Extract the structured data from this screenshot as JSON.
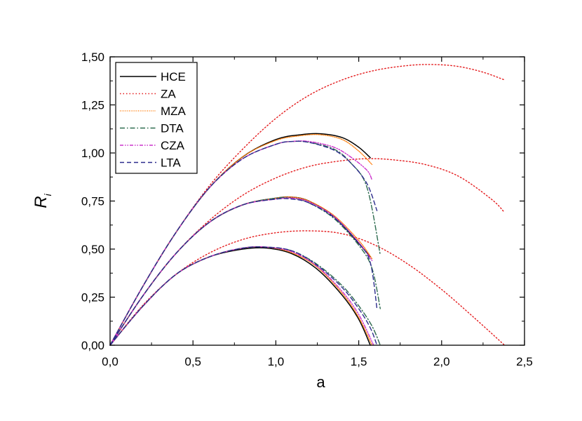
{
  "chart_data": {
    "type": "line",
    "xlabel": "a",
    "ylabel": "R",
    "ylabel_subscript": "i",
    "xlim": [
      0,
      2.5
    ],
    "ylim": [
      0,
      1.5
    ],
    "x_ticks": [
      "0,0",
      "0,5",
      "1,0",
      "1,5",
      "2,0",
      "2,5"
    ],
    "y_ticks": [
      "0,00",
      "0,25",
      "0,50",
      "0,75",
      "1,00",
      "1,25",
      "1,50"
    ],
    "grid": false,
    "legend_position": "top-left",
    "series": [
      {
        "name": "HCE",
        "color": "#000000",
        "dash": "solid",
        "curves": [
          [
            [
              0,
              0
            ],
            [
              0.2,
              0.205
            ],
            [
              0.4,
              0.37
            ],
            [
              0.6,
              0.46
            ],
            [
              0.8,
              0.5
            ],
            [
              0.95,
              0.505
            ],
            [
              1.1,
              0.475
            ],
            [
              1.25,
              0.395
            ],
            [
              1.4,
              0.26
            ],
            [
              1.5,
              0.135
            ],
            [
              1.57,
              0.0
            ]
          ],
          [
            [
              0,
              0
            ],
            [
              0.2,
              0.26
            ],
            [
              0.4,
              0.48
            ],
            [
              0.6,
              0.64
            ],
            [
              0.8,
              0.73
            ],
            [
              1.0,
              0.765
            ],
            [
              1.1,
              0.77
            ],
            [
              1.2,
              0.75
            ],
            [
              1.35,
              0.67
            ],
            [
              1.5,
              0.53
            ],
            [
              1.57,
              0.46
            ]
          ],
          [
            [
              0,
              0
            ],
            [
              0.2,
              0.31
            ],
            [
              0.4,
              0.59
            ],
            [
              0.6,
              0.82
            ],
            [
              0.8,
              0.98
            ],
            [
              1.0,
              1.07
            ],
            [
              1.15,
              1.095
            ],
            [
              1.27,
              1.1
            ],
            [
              1.4,
              1.08
            ],
            [
              1.5,
              1.03
            ],
            [
              1.57,
              0.975
            ]
          ]
        ]
      },
      {
        "name": "ZA",
        "color": "#e41a1c",
        "dash": "dotted",
        "curves": [
          [
            [
              0,
              0
            ],
            [
              0.2,
              0.21
            ],
            [
              0.4,
              0.37
            ],
            [
              0.6,
              0.48
            ],
            [
              0.8,
              0.55
            ],
            [
              1.0,
              0.585
            ],
            [
              1.2,
              0.595
            ],
            [
              1.4,
              0.58
            ],
            [
              1.6,
              0.52
            ],
            [
              1.8,
              0.42
            ],
            [
              2.0,
              0.29
            ],
            [
              2.2,
              0.14
            ],
            [
              2.38,
              0.0
            ]
          ],
          [
            [
              0,
              0
            ],
            [
              0.2,
              0.26
            ],
            [
              0.4,
              0.48
            ],
            [
              0.6,
              0.65
            ],
            [
              0.8,
              0.78
            ],
            [
              1.0,
              0.87
            ],
            [
              1.2,
              0.93
            ],
            [
              1.4,
              0.96
            ],
            [
              1.55,
              0.97
            ],
            [
              1.7,
              0.965
            ],
            [
              1.9,
              0.94
            ],
            [
              2.1,
              0.88
            ],
            [
              2.3,
              0.76
            ],
            [
              2.38,
              0.69
            ]
          ],
          [
            [
              0,
              0
            ],
            [
              0.2,
              0.31
            ],
            [
              0.4,
              0.59
            ],
            [
              0.6,
              0.83
            ],
            [
              0.8,
              1.02
            ],
            [
              1.0,
              1.18
            ],
            [
              1.2,
              1.3
            ],
            [
              1.4,
              1.38
            ],
            [
              1.6,
              1.43
            ],
            [
              1.8,
              1.455
            ],
            [
              1.95,
              1.46
            ],
            [
              2.1,
              1.45
            ],
            [
              2.25,
              1.42
            ],
            [
              2.38,
              1.38
            ]
          ]
        ]
      },
      {
        "name": "MZA",
        "color": "#ff7f0e",
        "dash": "fine-dot",
        "curves": [
          [
            [
              0,
              0
            ],
            [
              0.2,
              0.205
            ],
            [
              0.4,
              0.37
            ],
            [
              0.6,
              0.46
            ],
            [
              0.8,
              0.505
            ],
            [
              0.95,
              0.51
            ],
            [
              1.1,
              0.48
            ],
            [
              1.25,
              0.405
            ],
            [
              1.4,
              0.27
            ],
            [
              1.5,
              0.145
            ],
            [
              1.58,
              0.0
            ]
          ],
          [
            [
              0,
              0
            ],
            [
              0.2,
              0.26
            ],
            [
              0.4,
              0.48
            ],
            [
              0.6,
              0.64
            ],
            [
              0.8,
              0.73
            ],
            [
              1.0,
              0.765
            ],
            [
              1.1,
              0.77
            ],
            [
              1.2,
              0.75
            ],
            [
              1.35,
              0.675
            ],
            [
              1.5,
              0.545
            ],
            [
              1.58,
              0.45
            ]
          ],
          [
            [
              0,
              0
            ],
            [
              0.2,
              0.31
            ],
            [
              0.4,
              0.59
            ],
            [
              0.6,
              0.82
            ],
            [
              0.8,
              0.98
            ],
            [
              1.0,
              1.065
            ],
            [
              1.15,
              1.09
            ],
            [
              1.27,
              1.095
            ],
            [
              1.4,
              1.07
            ],
            [
              1.5,
              1.01
            ],
            [
              1.58,
              0.94
            ]
          ]
        ]
      },
      {
        "name": "DTA",
        "color": "#2e6b4f",
        "dash": "dash-dot",
        "curves": [
          [
            [
              0,
              0
            ],
            [
              0.2,
              0.205
            ],
            [
              0.4,
              0.37
            ],
            [
              0.6,
              0.46
            ],
            [
              0.8,
              0.505
            ],
            [
              0.95,
              0.51
            ],
            [
              1.1,
              0.49
            ],
            [
              1.25,
              0.42
            ],
            [
              1.4,
              0.31
            ],
            [
              1.5,
              0.205
            ],
            [
              1.58,
              0.1
            ],
            [
              1.63,
              0.0
            ]
          ],
          [
            [
              0,
              0
            ],
            [
              0.2,
              0.26
            ],
            [
              0.4,
              0.48
            ],
            [
              0.6,
              0.64
            ],
            [
              0.8,
              0.73
            ],
            [
              1.0,
              0.765
            ],
            [
              1.1,
              0.765
            ],
            [
              1.2,
              0.74
            ],
            [
              1.35,
              0.66
            ],
            [
              1.5,
              0.52
            ],
            [
              1.58,
              0.4
            ],
            [
              1.63,
              0.19
            ]
          ],
          [
            [
              0,
              0
            ],
            [
              0.2,
              0.31
            ],
            [
              0.4,
              0.59
            ],
            [
              0.6,
              0.82
            ],
            [
              0.8,
              0.97
            ],
            [
              1.0,
              1.045
            ],
            [
              1.1,
              1.06
            ],
            [
              1.2,
              1.055
            ],
            [
              1.35,
              1.02
            ],
            [
              1.45,
              0.95
            ],
            [
              1.55,
              0.82
            ],
            [
              1.63,
              0.47
            ]
          ]
        ]
      },
      {
        "name": "CZA",
        "color": "#cc33cc",
        "dash": "dash-dot-dot",
        "curves": [
          [
            [
              0,
              0
            ],
            [
              0.2,
              0.205
            ],
            [
              0.4,
              0.37
            ],
            [
              0.6,
              0.46
            ],
            [
              0.8,
              0.505
            ],
            [
              0.95,
              0.51
            ],
            [
              1.1,
              0.485
            ],
            [
              1.25,
              0.41
            ],
            [
              1.4,
              0.28
            ],
            [
              1.5,
              0.16
            ],
            [
              1.59,
              0.0
            ]
          ],
          [
            [
              0,
              0
            ],
            [
              0.2,
              0.26
            ],
            [
              0.4,
              0.48
            ],
            [
              0.6,
              0.64
            ],
            [
              0.8,
              0.73
            ],
            [
              1.0,
              0.76
            ],
            [
              1.1,
              0.765
            ],
            [
              1.2,
              0.745
            ],
            [
              1.35,
              0.67
            ],
            [
              1.5,
              0.535
            ],
            [
              1.58,
              0.44
            ]
          ],
          [
            [
              0,
              0
            ],
            [
              0.2,
              0.31
            ],
            [
              0.4,
              0.59
            ],
            [
              0.6,
              0.82
            ],
            [
              0.8,
              0.97
            ],
            [
              1.0,
              1.045
            ],
            [
              1.1,
              1.06
            ],
            [
              1.2,
              1.06
            ],
            [
              1.35,
              1.03
            ],
            [
              1.45,
              0.98
            ],
            [
              1.55,
              0.91
            ],
            [
              1.58,
              0.86
            ]
          ]
        ]
      },
      {
        "name": "LTA",
        "color": "#2c2c8c",
        "dash": "dashed",
        "curves": [
          [
            [
              0,
              0
            ],
            [
              0.2,
              0.205
            ],
            [
              0.4,
              0.37
            ],
            [
              0.6,
              0.46
            ],
            [
              0.8,
              0.505
            ],
            [
              0.95,
              0.51
            ],
            [
              1.1,
              0.49
            ],
            [
              1.25,
              0.415
            ],
            [
              1.4,
              0.3
            ],
            [
              1.5,
              0.19
            ],
            [
              1.57,
              0.09
            ],
            [
              1.61,
              0.0
            ]
          ],
          [
            [
              0,
              0
            ],
            [
              0.2,
              0.26
            ],
            [
              0.4,
              0.48
            ],
            [
              0.6,
              0.64
            ],
            [
              0.8,
              0.73
            ],
            [
              1.0,
              0.76
            ],
            [
              1.1,
              0.76
            ],
            [
              1.2,
              0.74
            ],
            [
              1.35,
              0.665
            ],
            [
              1.5,
              0.53
            ],
            [
              1.57,
              0.43
            ],
            [
              1.61,
              0.19
            ]
          ],
          [
            [
              0,
              0
            ],
            [
              0.2,
              0.31
            ],
            [
              0.4,
              0.59
            ],
            [
              0.6,
              0.82
            ],
            [
              0.8,
              0.97
            ],
            [
              1.0,
              1.045
            ],
            [
              1.1,
              1.06
            ],
            [
              1.2,
              1.055
            ],
            [
              1.35,
              1.015
            ],
            [
              1.45,
              0.95
            ],
            [
              1.55,
              0.84
            ],
            [
              1.61,
              0.7
            ]
          ]
        ]
      }
    ]
  }
}
